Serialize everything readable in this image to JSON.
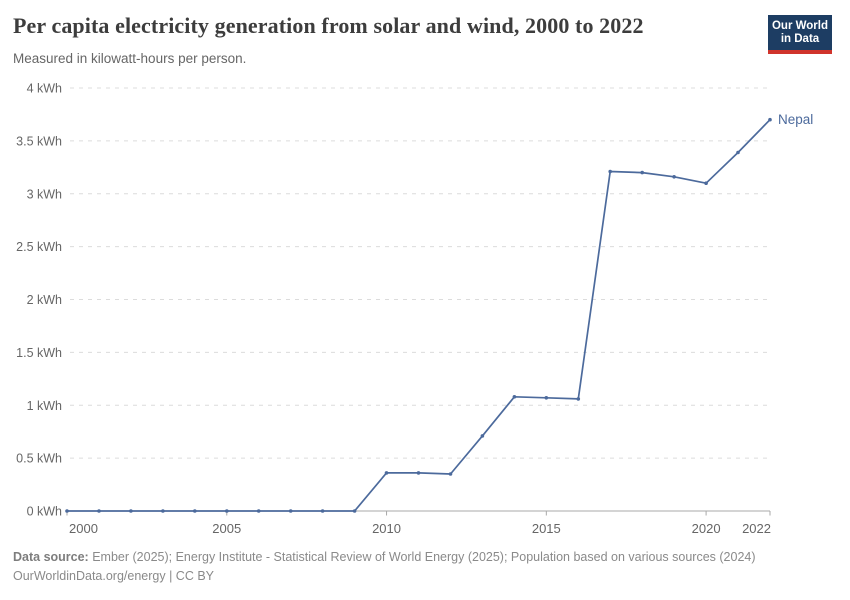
{
  "header": {
    "title": "Per capita electricity generation from solar and wind, 2000 to 2022",
    "subtitle": "Measured in kilowatt-hours per person."
  },
  "logo": {
    "line1": "Our World",
    "line2": "in Data",
    "bg_color": "#1d3d63",
    "bar_color": "#d0342c"
  },
  "footer": {
    "source_label": "Data source:",
    "source_text": "Ember (2025); Energy Institute - Statistical Review of World Energy (2025); Population based on various sources (2024)",
    "line2": "OurWorldinData.org/energy | CC BY"
  },
  "chart_data": {
    "type": "line",
    "title": "Per capita electricity generation from solar and wind, 2000 to 2022",
    "subtitle": "Measured in kilowatt-hours per person.",
    "unit": "kWh",
    "x": [
      2000,
      2001,
      2002,
      2003,
      2004,
      2005,
      2006,
      2007,
      2008,
      2009,
      2010,
      2011,
      2012,
      2013,
      2014,
      2015,
      2016,
      2017,
      2018,
      2019,
      2020,
      2021,
      2022
    ],
    "series": [
      {
        "name": "Nepal",
        "color": "#4c6a9c",
        "values": [
          0,
          0,
          0,
          0,
          0,
          0,
          0,
          0,
          0,
          0,
          0.36,
          0.36,
          0.35,
          0.71,
          1.08,
          1.07,
          1.06,
          3.21,
          3.2,
          3.16,
          3.1,
          3.39,
          3.7
        ]
      }
    ],
    "xlim": [
      2000,
      2022
    ],
    "ylim": [
      0,
      4
    ],
    "xticks": [
      2000,
      2005,
      2010,
      2015,
      2020,
      2022
    ],
    "yticks": [
      0,
      0.5,
      1,
      1.5,
      2,
      2.5,
      3,
      3.5,
      4
    ],
    "ytick_label_suffix": " kWh",
    "grid": "horizontal-dashed",
    "legend_position": "end-of-line",
    "axis_text_color": "#666666",
    "gridline_color": "#dcdcdc",
    "axis_line_color": "#a8a8a8"
  }
}
